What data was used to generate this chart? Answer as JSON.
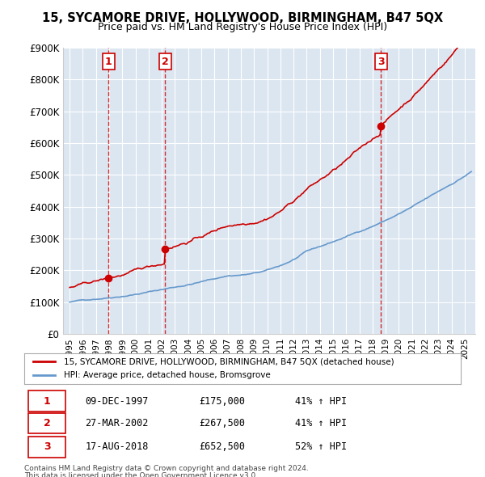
{
  "title": "15, SYCAMORE DRIVE, HOLLYWOOD, BIRMINGHAM, B47 5QX",
  "subtitle": "Price paid vs. HM Land Registry's House Price Index (HPI)",
  "ylabel": "",
  "ylim": [
    0,
    900000
  ],
  "yticks": [
    0,
    100000,
    200000,
    300000,
    400000,
    500000,
    600000,
    700000,
    800000,
    900000
  ],
  "ytick_labels": [
    "£0",
    "£100K",
    "£200K",
    "£300K",
    "£400K",
    "£500K",
    "£600K",
    "£700K",
    "£800K",
    "£900K"
  ],
  "sales": [
    {
      "date_num": 1997.94,
      "price": 175000,
      "label": "1"
    },
    {
      "date_num": 2002.24,
      "price": 267500,
      "label": "2"
    },
    {
      "date_num": 2018.63,
      "price": 652500,
      "label": "3"
    }
  ],
  "sale_colors": [
    "#cc0000",
    "#cc0000",
    "#cc0000"
  ],
  "vline_color": "#cc0000",
  "table_data": [
    [
      "1",
      "09-DEC-1997",
      "£175,000",
      "41% ↑ HPI"
    ],
    [
      "2",
      "27-MAR-2002",
      "£267,500",
      "41% ↑ HPI"
    ],
    [
      "3",
      "17-AUG-2018",
      "£652,500",
      "52% ↑ HPI"
    ]
  ],
  "legend_line1": "15, SYCAMORE DRIVE, HOLLYWOOD, BIRMINGHAM, B47 5QX (detached house)",
  "legend_line2": "HPI: Average price, detached house, Bromsgrove",
  "footer1": "Contains HM Land Registry data © Crown copyright and database right 2024.",
  "footer2": "This data is licensed under the Open Government Licence v3.0.",
  "line_color": "#cc0000",
  "hpi_color": "#6699cc",
  "bg_color": "#dce6f1",
  "plot_bg": "#dce6f1"
}
